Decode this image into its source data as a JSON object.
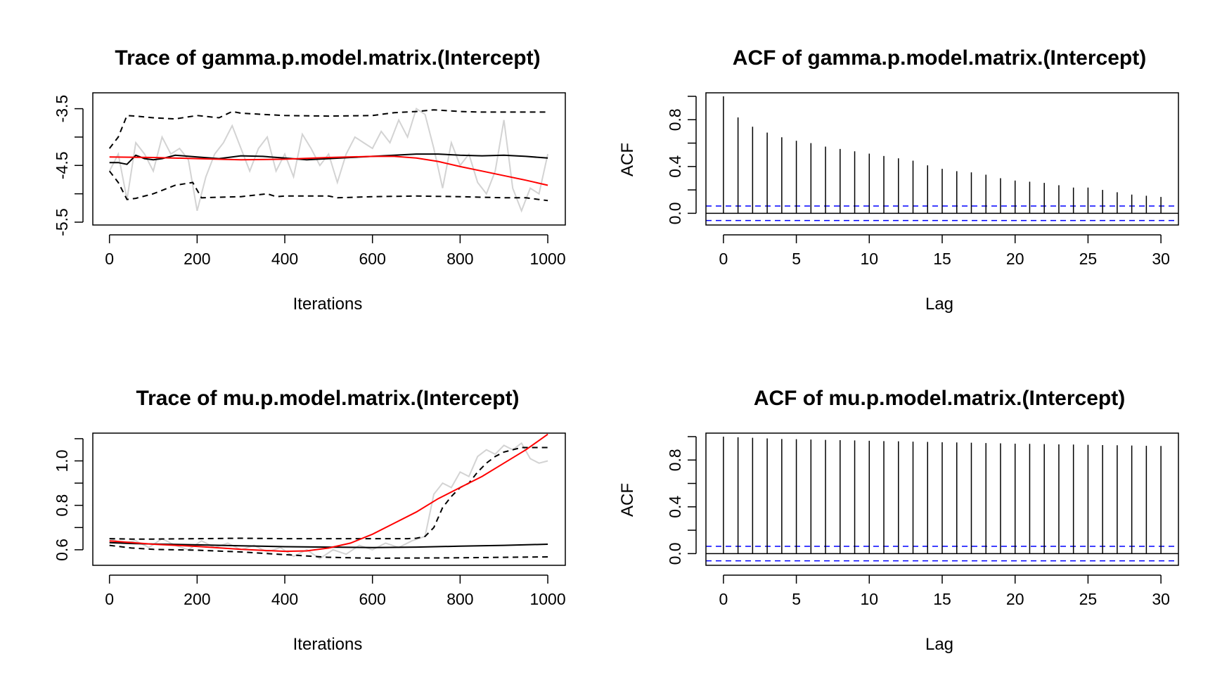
{
  "chart_data": [
    {
      "type": "line",
      "title": "Trace of gamma.p.model.matrix.(Intercept)",
      "xlabel": "Iterations",
      "ylabel": "",
      "xlim": [
        -38,
        1040
      ],
      "ylim": [
        -5.55,
        -3.22
      ],
      "xticks": [
        0,
        200,
        400,
        600,
        800,
        1000
      ],
      "xtick_labels": [
        "0",
        "200",
        "400",
        "600",
        "800",
        "1000"
      ],
      "yticks": [
        -5.5,
        -5.0,
        -4.5,
        -4.0,
        -3.5
      ],
      "ytick_labels": [
        "-5.5",
        "",
        "-4.5",
        "",
        "-3.5"
      ],
      "series": [
        {
          "color": "#d3d3d3",
          "style": "solid",
          "x": [
            0,
            20,
            40,
            60,
            80,
            100,
            120,
            140,
            160,
            180,
            200,
            220,
            240,
            260,
            280,
            300,
            320,
            340,
            360,
            380,
            400,
            420,
            440,
            460,
            480,
            500,
            520,
            540,
            560,
            580,
            600,
            620,
            640,
            660,
            680,
            700,
            720,
            740,
            760,
            780,
            800,
            820,
            840,
            860,
            880,
            900,
            920,
            940,
            960,
            980,
            1000
          ],
          "values": [
            -4.6,
            -4.3,
            -5.1,
            -4.1,
            -4.3,
            -4.6,
            -4.0,
            -4.3,
            -4.2,
            -4.4,
            -5.3,
            -4.7,
            -4.3,
            -4.1,
            -3.8,
            -4.2,
            -4.6,
            -4.2,
            -4.0,
            -4.6,
            -4.3,
            -4.7,
            -3.95,
            -4.2,
            -4.5,
            -4.3,
            -4.8,
            -4.3,
            -4.0,
            -4.1,
            -4.2,
            -3.9,
            -4.1,
            -3.7,
            -4.0,
            -3.5,
            -3.6,
            -4.2,
            -4.9,
            -4.1,
            -4.5,
            -4.3,
            -4.8,
            -5.0,
            -4.6,
            -3.7,
            -4.9,
            -5.3,
            -4.9,
            -5.0,
            -4.3
          ]
        },
        {
          "color": "#000000",
          "style": "solid",
          "x": [
            0,
            20,
            40,
            60,
            80,
            100,
            120,
            150,
            200,
            250,
            300,
            350,
            400,
            450,
            500,
            550,
            600,
            650,
            700,
            750,
            800,
            850,
            900,
            950,
            1000
          ],
          "values": [
            -4.45,
            -4.45,
            -4.48,
            -4.32,
            -4.38,
            -4.4,
            -4.38,
            -4.32,
            -4.35,
            -4.38,
            -4.33,
            -4.34,
            -4.37,
            -4.4,
            -4.38,
            -4.36,
            -4.34,
            -4.32,
            -4.3,
            -4.3,
            -4.32,
            -4.33,
            -4.32,
            -4.34,
            -4.37
          ]
        },
        {
          "color": "#000000",
          "style": "dashed",
          "x": [
            0,
            20,
            40,
            60,
            100,
            150,
            200,
            250,
            280,
            300,
            350,
            400,
            500,
            600,
            650,
            700,
            740,
            800,
            850,
            900,
            950,
            1000
          ],
          "values": [
            -4.2,
            -4.0,
            -3.62,
            -3.63,
            -3.66,
            -3.68,
            -3.62,
            -3.66,
            -3.55,
            -3.58,
            -3.6,
            -3.62,
            -3.63,
            -3.62,
            -3.57,
            -3.55,
            -3.52,
            -3.55,
            -3.56,
            -3.56,
            -3.56,
            -3.56
          ]
        },
        {
          "color": "#000000",
          "style": "dashed",
          "x": [
            0,
            20,
            40,
            60,
            100,
            150,
            190,
            210,
            250,
            300,
            360,
            380,
            400,
            500,
            520,
            600,
            700,
            800,
            900,
            950,
            980,
            1000
          ],
          "values": [
            -4.6,
            -4.8,
            -5.1,
            -5.08,
            -5.0,
            -4.85,
            -4.8,
            -5.07,
            -5.06,
            -5.05,
            -5.0,
            -5.05,
            -5.04,
            -5.04,
            -5.07,
            -5.05,
            -5.04,
            -5.05,
            -5.07,
            -5.07,
            -5.1,
            -5.12
          ]
        },
        {
          "color": "#ff0000",
          "style": "solid",
          "x": [
            0,
            100,
            200,
            300,
            400,
            500,
            600,
            650,
            700,
            750,
            800,
            850,
            900,
            950,
            1000
          ],
          "values": [
            -4.35,
            -4.36,
            -4.38,
            -4.4,
            -4.39,
            -4.36,
            -4.34,
            -4.34,
            -4.37,
            -4.43,
            -4.52,
            -4.6,
            -4.68,
            -4.76,
            -4.85
          ]
        }
      ]
    },
    {
      "type": "bar",
      "title": "ACF of gamma.p.model.matrix.(Intercept)",
      "xlabel": "Lag",
      "ylabel": "ACF",
      "xlim": [
        -1.2,
        31.2
      ],
      "ylim": [
        -0.1,
        1.03
      ],
      "xticks": [
        0,
        5,
        10,
        15,
        20,
        25,
        30
      ],
      "xtick_labels": [
        "0",
        "5",
        "10",
        "15",
        "20",
        "25",
        "30"
      ],
      "yticks": [
        0.0,
        0.2,
        0.4,
        0.6,
        0.8,
        1.0
      ],
      "ytick_labels": [
        "0.0",
        "",
        "0.4",
        "",
        "0.8",
        ""
      ],
      "lags": [
        0,
        1,
        2,
        3,
        4,
        5,
        6,
        7,
        8,
        9,
        10,
        11,
        12,
        13,
        14,
        15,
        16,
        17,
        18,
        19,
        20,
        21,
        22,
        23,
        24,
        25,
        26,
        27,
        28,
        29,
        30
      ],
      "values": [
        1.0,
        0.82,
        0.74,
        0.69,
        0.65,
        0.62,
        0.6,
        0.57,
        0.55,
        0.53,
        0.51,
        0.49,
        0.47,
        0.45,
        0.41,
        0.38,
        0.36,
        0.35,
        0.33,
        0.3,
        0.28,
        0.27,
        0.26,
        0.24,
        0.22,
        0.22,
        0.2,
        0.18,
        0.16,
        0.15,
        0.14
      ],
      "ci": 0.062,
      "ci_color": "#0000ff"
    },
    {
      "type": "line",
      "title": "Trace of mu.p.model.matrix.(Intercept)",
      "xlabel": "Iterations",
      "ylabel": "",
      "xlim": [
        -38,
        1040
      ],
      "ylim": [
        0.53,
        1.125
      ],
      "xticks": [
        0,
        200,
        400,
        600,
        800,
        1000
      ],
      "xtick_labels": [
        "0",
        "200",
        "400",
        "600",
        "800",
        "1000"
      ],
      "yticks": [
        0.6,
        0.7,
        0.8,
        0.9,
        1.0,
        1.1
      ],
      "ytick_labels": [
        "0.6",
        "",
        "0.8",
        "",
        "1.0",
        ""
      ],
      "series": [
        {
          "color": "#d3d3d3",
          "style": "solid",
          "x": [
            0,
            30,
            60,
            90,
            120,
            150,
            180,
            210,
            240,
            270,
            300,
            330,
            360,
            390,
            420,
            450,
            480,
            510,
            540,
            570,
            600,
            630,
            660,
            690,
            720,
            740,
            760,
            780,
            800,
            820,
            840,
            860,
            880,
            900,
            920,
            940,
            960,
            980,
            1000
          ],
          "values": [
            0.65,
            0.63,
            0.64,
            0.61,
            0.65,
            0.62,
            0.6,
            0.64,
            0.61,
            0.63,
            0.6,
            0.62,
            0.59,
            0.61,
            0.57,
            0.6,
            0.56,
            0.6,
            0.58,
            0.62,
            0.6,
            0.63,
            0.61,
            0.64,
            0.66,
            0.85,
            0.9,
            0.88,
            0.95,
            0.93,
            1.02,
            1.05,
            1.03,
            1.07,
            1.05,
            1.08,
            1.01,
            0.99,
            1.0
          ]
        },
        {
          "color": "#000000",
          "style": "solid",
          "x": [
            0,
            50,
            100,
            200,
            300,
            400,
            500,
            600,
            700,
            800,
            900,
            1000
          ],
          "values": [
            0.632,
            0.628,
            0.626,
            0.622,
            0.618,
            0.614,
            0.612,
            0.61,
            0.612,
            0.616,
            0.62,
            0.625
          ]
        },
        {
          "color": "#000000",
          "style": "dashed",
          "x": [
            0,
            50,
            100,
            200,
            300,
            400,
            500,
            600,
            680,
            700,
            720,
            740,
            760,
            780,
            800,
            820,
            840,
            860,
            880,
            900,
            920,
            940,
            1000
          ],
          "values": [
            0.65,
            0.648,
            0.648,
            0.65,
            0.652,
            0.65,
            0.65,
            0.65,
            0.65,
            0.652,
            0.66,
            0.7,
            0.79,
            0.84,
            0.88,
            0.9,
            0.95,
            0.99,
            1.02,
            1.04,
            1.05,
            1.06,
            1.06
          ]
        },
        {
          "color": "#000000",
          "style": "dashed",
          "x": [
            0,
            50,
            100,
            200,
            300,
            400,
            500,
            600,
            700,
            800,
            900,
            1000
          ],
          "values": [
            0.62,
            0.608,
            0.602,
            0.598,
            0.59,
            0.578,
            0.566,
            0.562,
            0.563,
            0.564,
            0.566,
            0.568
          ]
        },
        {
          "color": "#ff0000",
          "style": "solid",
          "x": [
            0,
            100,
            200,
            300,
            400,
            450,
            500,
            550,
            600,
            650,
            700,
            750,
            800,
            850,
            900,
            950,
            1000
          ],
          "values": [
            0.64,
            0.625,
            0.615,
            0.602,
            0.593,
            0.595,
            0.608,
            0.63,
            0.67,
            0.72,
            0.77,
            0.83,
            0.88,
            0.93,
            0.99,
            1.05,
            1.12
          ]
        }
      ]
    },
    {
      "type": "bar",
      "title": "ACF of mu.p.model.matrix.(Intercept)",
      "xlabel": "Lag",
      "ylabel": "ACF",
      "xlim": [
        -1.2,
        31.2
      ],
      "ylim": [
        -0.1,
        1.03
      ],
      "xticks": [
        0,
        5,
        10,
        15,
        20,
        25,
        30
      ],
      "xtick_labels": [
        "0",
        "5",
        "10",
        "15",
        "20",
        "25",
        "30"
      ],
      "yticks": [
        0.0,
        0.2,
        0.4,
        0.6,
        0.8,
        1.0
      ],
      "ytick_labels": [
        "0.0",
        "",
        "0.4",
        "",
        "0.8",
        ""
      ],
      "lags": [
        0,
        1,
        2,
        3,
        4,
        5,
        6,
        7,
        8,
        9,
        10,
        11,
        12,
        13,
        14,
        15,
        16,
        17,
        18,
        19,
        20,
        21,
        22,
        23,
        24,
        25,
        26,
        27,
        28,
        29,
        30
      ],
      "values": [
        1.0,
        0.995,
        0.99,
        0.985,
        0.98,
        0.978,
        0.975,
        0.972,
        0.97,
        0.968,
        0.965,
        0.962,
        0.96,
        0.957,
        0.955,
        0.952,
        0.95,
        0.948,
        0.945,
        0.943,
        0.94,
        0.938,
        0.936,
        0.934,
        0.932,
        0.93,
        0.928,
        0.926,
        0.924,
        0.922,
        0.92
      ],
      "ci": 0.062,
      "ci_color": "#0000ff"
    }
  ]
}
